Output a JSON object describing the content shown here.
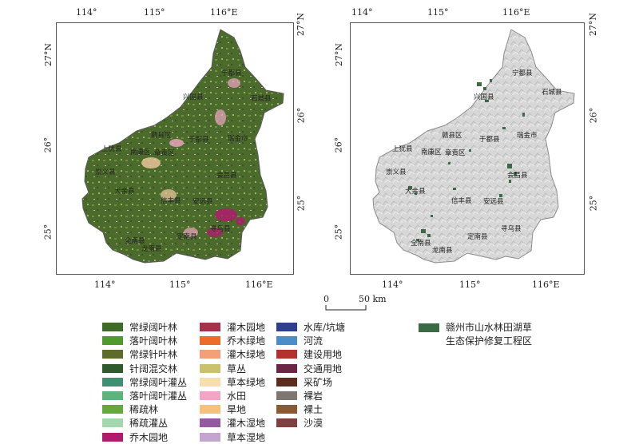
{
  "axes": {
    "lon_ticks": [
      "114°",
      "115°",
      "116°E"
    ],
    "lat_ticks": [
      "27°N",
      "26°",
      "25°"
    ]
  },
  "counties": [
    "宁都县",
    "兴国县",
    "石城县",
    "赣县区",
    "于都县",
    "瑞金市",
    "南康区",
    "章贡区",
    "上犹县",
    "崇义县",
    "大余县",
    "会昌县",
    "信丰县",
    "安远县",
    "寻乌县",
    "全南县",
    "龙南县",
    "定南县"
  ],
  "legend": {
    "landcover": [
      {
        "label": "常绿阔叶林",
        "color": "#3f6b2a"
      },
      {
        "label": "落叶阔叶林",
        "color": "#4f9a2c"
      },
      {
        "label": "常绿针叶林",
        "color": "#5d6b2c"
      },
      {
        "label": "针阔混交林",
        "color": "#2f5a2b"
      },
      {
        "label": "常绿阔叶灌丛",
        "color": "#3f8f73"
      },
      {
        "label": "落叶阔叶灌丛",
        "color": "#5fb27c"
      },
      {
        "label": "稀疏林",
        "color": "#66a93a"
      },
      {
        "label": "稀疏灌丛",
        "color": "#a4d7ae"
      },
      {
        "label": "乔木园地",
        "color": "#b01b6d"
      },
      {
        "label": "灌木园地",
        "color": "#a4324b"
      },
      {
        "label": "乔木绿地",
        "color": "#ee6a2a"
      },
      {
        "label": "灌木绿地",
        "color": "#f3a07a"
      },
      {
        "label": "草丛",
        "color": "#c9c16c"
      },
      {
        "label": "草本绿地",
        "color": "#f6dfac"
      },
      {
        "label": "水田",
        "color": "#f1a6c6"
      },
      {
        "label": "旱地",
        "color": "#f7c07b"
      },
      {
        "label": "灌木湿地",
        "color": "#935a9f"
      },
      {
        "label": "草本湿地",
        "color": "#c3a5cf"
      },
      {
        "label": "水库/坑塘",
        "color": "#2e3f8f"
      },
      {
        "label": "河流",
        "color": "#4a8dc9"
      },
      {
        "label": "建设用地",
        "color": "#b4322d"
      },
      {
        "label": "交通用地",
        "color": "#6b2545"
      },
      {
        "label": "采矿场",
        "color": "#5e2c1e"
      },
      {
        "label": "裸岩",
        "color": "#7e7670"
      },
      {
        "label": "裸土",
        "color": "#8a5a35"
      },
      {
        "label": "沙漠",
        "color": "#7e4040"
      }
    ],
    "project": {
      "label_line1": "赣州市山水林田湖草",
      "label_line2": "生态保护修复工程区",
      "color": "#3b6b45"
    }
  },
  "scalebar": {
    "zero": "0",
    "distance": "50 km"
  }
}
